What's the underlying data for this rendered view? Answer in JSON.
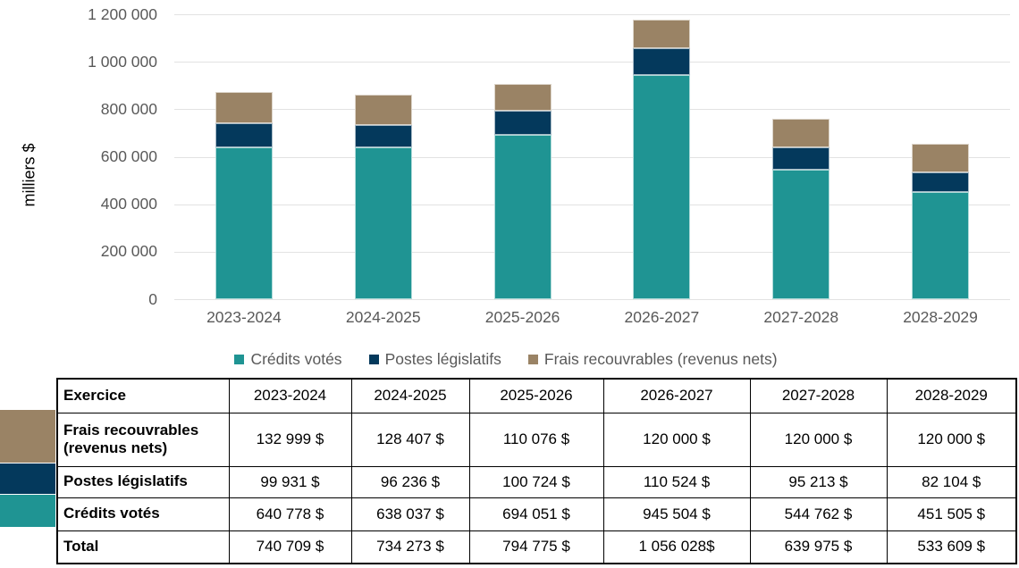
{
  "chart_data": {
    "type": "bar",
    "stacked": true,
    "title": "",
    "xlabel": "",
    "ylabel": "milliers $",
    "ylim": [
      0,
      1200000
    ],
    "ytick_interval": 200000,
    "ytick_labels": [
      "0",
      "200 000",
      "400 000",
      "600 000",
      "800 000",
      "1 000 000",
      "1 200 000"
    ],
    "categories": [
      "2023-2024",
      "2024-2025",
      "2025-2026",
      "2026-2027",
      "2027-2028",
      "2028-2029"
    ],
    "series": [
      {
        "name": "Crédits votés",
        "color": "#1F9493",
        "values": [
          640778,
          638037,
          694051,
          945504,
          544762,
          451505
        ]
      },
      {
        "name": "Postes législatifs",
        "color": "#04395C",
        "values": [
          99931,
          96236,
          100724,
          110524,
          95213,
          82104
        ]
      },
      {
        "name": "Frais recouvrables (revenus nets)",
        "color": "#9A8365",
        "values": [
          132999,
          128407,
          110076,
          120000,
          120000,
          120000
        ]
      }
    ],
    "grid": true,
    "legend_position": "bottom"
  },
  "table": {
    "header": [
      "Exercice",
      "2023-2024",
      "2024-2025",
      "2025-2026",
      "2026-2027",
      "2027-2028",
      "2028-2029"
    ],
    "rows": [
      {
        "label": "Frais recouvrables (revenus nets)",
        "swatch_color": "#9A8365",
        "values": [
          "132 999 $",
          "128 407 $",
          "110 076 $",
          "120 000 $",
          "120 000 $",
          "120 000 $"
        ]
      },
      {
        "label": "Postes législatifs",
        "swatch_color": "#04395C",
        "values": [
          "99 931 $",
          "96 236 $",
          "100 724 $",
          "110 524 $",
          "95 213 $",
          "82 104 $"
        ]
      },
      {
        "label": "Crédits votés",
        "swatch_color": "#1F9493",
        "values": [
          "640 778 $",
          "638 037 $",
          "694 051 $",
          "945 504 $",
          "544 762 $",
          "451 505 $"
        ]
      },
      {
        "label": "Total",
        "swatch_color": "",
        "values": [
          "740 709 $",
          "734 273 $",
          "794 775 $",
          "1 056 028$",
          "639 975 $",
          "533 609 $"
        ]
      }
    ]
  },
  "colors": {
    "axis_text": "#595959",
    "gridline": "#E2E2E2",
    "table_border": "#000000",
    "background": "#FFFFFF"
  }
}
